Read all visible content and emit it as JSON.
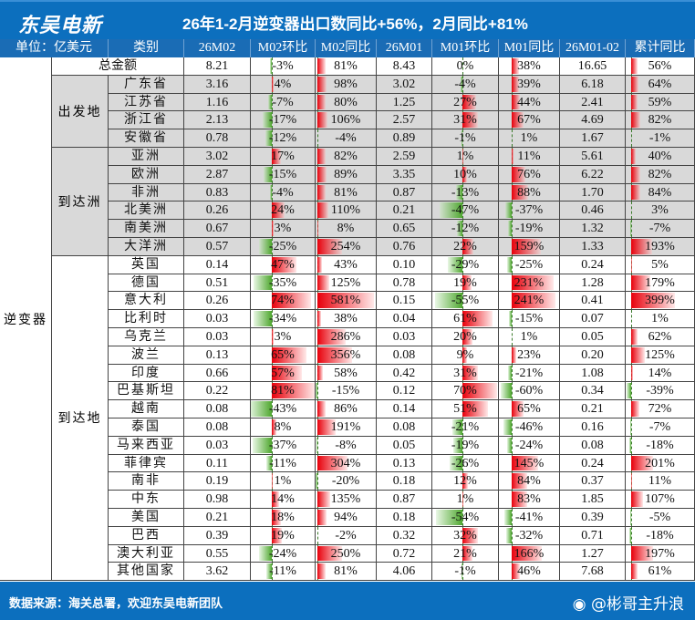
{
  "header": {
    "brand": "东吴电新",
    "title": "26年1-2月逆变器出口数同比+56%，2月同比+81%"
  },
  "columns": [
    "单位：亿美元",
    "类别",
    "26M02",
    "M02环比",
    "M02同比",
    "26M01",
    "M01环比",
    "M01同比",
    "26M01-02",
    "累计同比"
  ],
  "product": "逆变器",
  "total": {
    "label": "总金额",
    "values": [
      "8.21",
      "-3%",
      "81%",
      "8.43",
      "0%",
      "38%",
      "16.65",
      "56%"
    ]
  },
  "groups": [
    {
      "name": "出发地",
      "rows": [
        [
          "广东省",
          "3.16",
          "4%",
          "98%",
          "3.02",
          "-4%",
          "39%",
          "6.18",
          "64%"
        ],
        [
          "江苏省",
          "1.16",
          "-7%",
          "80%",
          "1.25",
          "27%",
          "44%",
          "2.41",
          "59%"
        ],
        [
          "浙江省",
          "2.13",
          "-17%",
          "106%",
          "2.57",
          "31%",
          "67%",
          "4.69",
          "82%"
        ],
        [
          "安徽省",
          "0.78",
          "-12%",
          "-4%",
          "0.89",
          "-1%",
          "1%",
          "1.67",
          "-1%"
        ]
      ]
    },
    {
      "name": "到达洲",
      "rows": [
        [
          "亚洲",
          "3.02",
          "17%",
          "82%",
          "2.59",
          "1%",
          "11%",
          "5.61",
          "40%"
        ],
        [
          "欧洲",
          "2.87",
          "-15%",
          "89%",
          "3.35",
          "10%",
          "76%",
          "6.22",
          "82%"
        ],
        [
          "非洲",
          "0.83",
          "-4%",
          "81%",
          "0.87",
          "-13%",
          "88%",
          "1.70",
          "84%"
        ],
        [
          "北美洲",
          "0.26",
          "24%",
          "110%",
          "0.21",
          "-47%",
          "-37%",
          "0.46",
          "3%"
        ],
        [
          "南美洲",
          "0.67",
          "3%",
          "8%",
          "0.65",
          "-12%",
          "-19%",
          "1.32",
          "-7%"
        ],
        [
          "大洋洲",
          "0.57",
          "-25%",
          "254%",
          "0.76",
          "22%",
          "159%",
          "1.33",
          "193%"
        ]
      ]
    },
    {
      "name": "到达地",
      "rows": [
        [
          "英国",
          "0.14",
          "47%",
          "43%",
          "0.10",
          "-29%",
          "-25%",
          "0.24",
          "5%"
        ],
        [
          "德国",
          "0.51",
          "-35%",
          "125%",
          "0.78",
          "19%",
          "231%",
          "1.28",
          "179%"
        ],
        [
          "意大利",
          "0.26",
          "74%",
          "581%",
          "0.15",
          "-55%",
          "241%",
          "0.41",
          "399%"
        ],
        [
          "比利时",
          "0.03",
          "-34%",
          "38%",
          "0.04",
          "61%",
          "-15%",
          "0.07",
          "1%"
        ],
        [
          "乌克兰",
          "0.03",
          "3%",
          "286%",
          "0.03",
          "20%",
          "1%",
          "0.05",
          "62%"
        ],
        [
          "波兰",
          "0.13",
          "65%",
          "356%",
          "0.08",
          "9%",
          "23%",
          "0.20",
          "125%"
        ],
        [
          "印度",
          "0.66",
          "57%",
          "58%",
          "0.42",
          "31%",
          "-21%",
          "1.08",
          "14%"
        ],
        [
          "巴基斯坦",
          "0.22",
          "81%",
          "-15%",
          "0.12",
          "70%",
          "-60%",
          "0.34",
          "-39%"
        ],
        [
          "越南",
          "0.08",
          "-43%",
          "86%",
          "0.14",
          "51%",
          "65%",
          "0.21",
          "72%"
        ],
        [
          "泰国",
          "0.08",
          "8%",
          "191%",
          "0.08",
          "-21%",
          "-46%",
          "0.16",
          "-7%"
        ],
        [
          "马来西亚",
          "0.03",
          "-37%",
          "-8%",
          "0.05",
          "-19%",
          "-24%",
          "0.08",
          "-18%"
        ],
        [
          "菲律宾",
          "0.11",
          "-11%",
          "304%",
          "0.13",
          "-26%",
          "145%",
          "0.24",
          "201%"
        ],
        [
          "南非",
          "0.19",
          "1%",
          "-20%",
          "0.18",
          "12%",
          "84%",
          "0.37",
          "11%"
        ],
        [
          "中东",
          "0.98",
          "14%",
          "135%",
          "0.87",
          "1%",
          "83%",
          "1.85",
          "107%"
        ],
        [
          "美国",
          "0.21",
          "18%",
          "94%",
          "0.18",
          "-54%",
          "-41%",
          "0.39",
          "-5%"
        ],
        [
          "巴西",
          "0.39",
          "19%",
          "-2%",
          "0.32",
          "32%",
          "-32%",
          "0.71",
          "-18%"
        ],
        [
          "澳大利亚",
          "0.55",
          "-24%",
          "250%",
          "0.72",
          "21%",
          "166%",
          "1.27",
          "197%"
        ],
        [
          "其他国家",
          "3.62",
          "-11%",
          "81%",
          "4.06",
          "-1%",
          "46%",
          "7.68",
          "61%"
        ]
      ]
    }
  ],
  "colors": {
    "header_blue": "#0c6fbe",
    "positive": "#e8000b",
    "negative": "#4ea72e",
    "group_bg": "#d9d9d9"
  },
  "footer": {
    "source": "数据来源：海关总署，欢迎东吴电新团队",
    "weibo": "@彬哥主升浪",
    "weibo_icon": "weibo-icon"
  }
}
